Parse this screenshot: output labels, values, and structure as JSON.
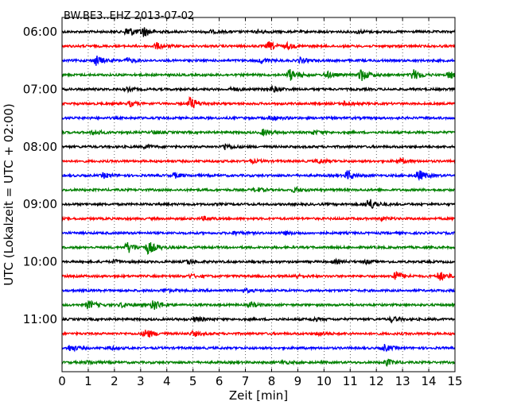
{
  "chart_data": {
    "type": "line",
    "title": "BW.BE3..EHZ 2013-07-02",
    "xlabel": "Zeit  [min]",
    "ylabel": "UTC (Lokalzeit = UTC + 02:00)",
    "xlim": [
      0,
      15
    ],
    "x_ticks": [
      0,
      1,
      2,
      3,
      4,
      5,
      6,
      7,
      8,
      9,
      10,
      11,
      12,
      13,
      14,
      15
    ],
    "y_ticks": [
      "06:00",
      "07:00",
      "08:00",
      "09:00",
      "10:00",
      "11:00"
    ],
    "grid": "vertical dotted at each minute",
    "colors": [
      "#000000",
      "#ff0000",
      "#0000ff",
      "#008000"
    ],
    "trace_interval_min": 15,
    "traces": [
      {
        "time": "06:00",
        "color": "#000000",
        "events": [
          [
            2.5,
            7
          ],
          [
            3.1,
            6
          ],
          [
            5.6,
            2
          ],
          [
            7.5,
            2
          ],
          [
            11.3,
            2
          ]
        ]
      },
      {
        "time": "06:15",
        "color": "#ff0000",
        "events": [
          [
            3.6,
            4
          ],
          [
            7.9,
            5
          ],
          [
            8.6,
            3
          ]
        ]
      },
      {
        "time": "06:30",
        "color": "#0000ff",
        "events": [
          [
            1.3,
            6
          ],
          [
            2.5,
            3
          ],
          [
            7.6,
            3
          ],
          [
            9.1,
            3
          ]
        ]
      },
      {
        "time": "06:45",
        "color": "#008000",
        "events": [
          [
            8.7,
            7
          ],
          [
            10.1,
            4
          ],
          [
            11.4,
            8
          ],
          [
            13.4,
            7
          ],
          [
            14.8,
            5
          ]
        ]
      },
      {
        "time": "07:00",
        "color": "#000000",
        "events": [
          [
            8.0,
            4
          ],
          [
            2.5,
            2
          ],
          [
            6.5,
            2
          ]
        ]
      },
      {
        "time": "07:15",
        "color": "#ff0000",
        "events": [
          [
            4.9,
            8
          ],
          [
            2.6,
            3
          ],
          [
            10.8,
            3
          ]
        ]
      },
      {
        "time": "07:30",
        "color": "#0000ff",
        "events": [
          [
            8.0,
            3
          ]
        ]
      },
      {
        "time": "07:45",
        "color": "#008000",
        "events": [
          [
            1.2,
            3
          ],
          [
            7.7,
            4
          ],
          [
            3.5,
            2
          ],
          [
            9.6,
            2
          ]
        ]
      },
      {
        "time": "08:00",
        "color": "#000000",
        "events": [
          [
            6.2,
            4
          ],
          [
            3.2,
            2
          ]
        ]
      },
      {
        "time": "08:15",
        "color": "#ff0000",
        "events": [
          [
            7.2,
            2
          ],
          [
            9.8,
            3
          ],
          [
            12.9,
            3
          ]
        ]
      },
      {
        "time": "08:30",
        "color": "#0000ff",
        "events": [
          [
            10.9,
            6
          ],
          [
            13.6,
            7
          ],
          [
            4.3,
            3
          ],
          [
            1.6,
            3
          ]
        ]
      },
      {
        "time": "08:45",
        "color": "#008000",
        "events": [
          [
            7.4,
            3
          ],
          [
            8.9,
            3
          ]
        ]
      },
      {
        "time": "09:00",
        "color": "#000000",
        "events": [
          [
            11.7,
            8
          ]
        ]
      },
      {
        "time": "09:15",
        "color": "#ff0000",
        "events": [
          [
            5.4,
            2
          ],
          [
            12.2,
            2
          ]
        ]
      },
      {
        "time": "09:30",
        "color": "#0000ff",
        "events": [
          [
            8.5,
            2
          ],
          [
            6.6,
            2
          ]
        ]
      },
      {
        "time": "09:45",
        "color": "#008000",
        "events": [
          [
            2.5,
            7
          ],
          [
            3.3,
            8
          ]
        ]
      },
      {
        "time": "10:00",
        "color": "#000000",
        "events": [
          [
            4.8,
            3
          ],
          [
            2.0,
            2
          ],
          [
            10.4,
            2
          ],
          [
            11.6,
            2
          ]
        ]
      },
      {
        "time": "10:15",
        "color": "#ff0000",
        "events": [
          [
            12.7,
            7
          ],
          [
            14.4,
            6
          ],
          [
            4.9,
            2
          ],
          [
            8.9,
            2
          ]
        ]
      },
      {
        "time": "10:30",
        "color": "#0000ff",
        "events": [
          [
            3.9,
            2
          ],
          [
            7.0,
            2
          ]
        ]
      },
      {
        "time": "10:45",
        "color": "#008000",
        "events": [
          [
            1.0,
            5
          ],
          [
            3.5,
            7
          ],
          [
            2.3,
            3
          ],
          [
            7.2,
            3
          ]
        ]
      },
      {
        "time": "11:00",
        "color": "#000000",
        "events": [
          [
            5.1,
            3
          ],
          [
            12.6,
            3
          ],
          [
            9.6,
            2
          ]
        ]
      },
      {
        "time": "11:15",
        "color": "#ff0000",
        "events": [
          [
            3.2,
            6
          ],
          [
            5.0,
            3
          ],
          [
            9.8,
            3
          ]
        ]
      },
      {
        "time": "11:30",
        "color": "#0000ff",
        "events": [
          [
            0.3,
            4
          ],
          [
            12.3,
            4
          ],
          [
            1.8,
            2
          ]
        ]
      },
      {
        "time": "11:45",
        "color": "#008000",
        "events": [
          [
            12.4,
            4
          ],
          [
            8.4,
            2
          ],
          [
            1.0,
            2
          ]
        ]
      }
    ]
  }
}
